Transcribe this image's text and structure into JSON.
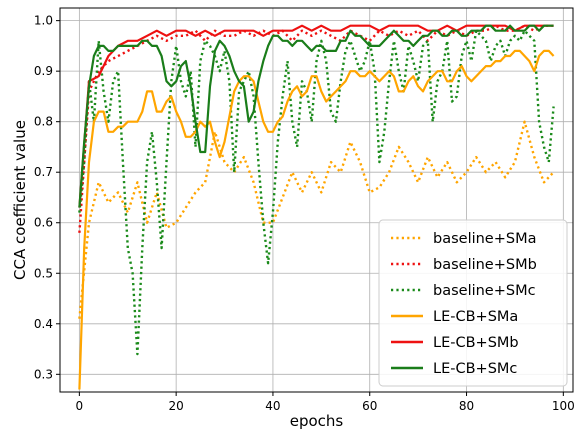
{
  "chart_data": {
    "type": "line",
    "xlabel": "epochs",
    "ylabel": "CCA coefficient value",
    "xlim": [
      -4,
      102
    ],
    "ylim": [
      0.265,
      1.025
    ],
    "xticks": [
      0,
      20,
      40,
      60,
      80,
      100
    ],
    "yticks": [
      0.3,
      0.4,
      0.5,
      0.6,
      0.7,
      0.8,
      0.9,
      1.0
    ],
    "xtick_labels": [
      "0",
      "20",
      "40",
      "60",
      "80",
      "100"
    ],
    "ytick_labels": [
      "0.3",
      "0.4",
      "0.5",
      "0.6",
      "0.7",
      "0.8",
      "0.9",
      "1.0"
    ],
    "grid": true,
    "legend_position": "bottom-right",
    "series": [
      {
        "name": "baseline+SMa",
        "color": "#ffa500",
        "style": "dotted",
        "x": [
          0,
          2,
          4,
          6,
          8,
          10,
          12,
          14,
          16,
          18,
          20,
          22,
          24,
          26,
          28,
          30,
          32,
          34,
          36,
          38,
          40,
          42,
          44,
          46,
          48,
          50,
          52,
          54,
          56,
          58,
          60,
          62,
          64,
          66,
          68,
          70,
          72,
          74,
          76,
          78,
          80,
          82,
          84,
          86,
          88,
          90,
          92,
          94,
          96,
          98
        ],
        "y": [
          0.41,
          0.6,
          0.68,
          0.64,
          0.66,
          0.62,
          0.68,
          0.6,
          0.66,
          0.59,
          0.6,
          0.63,
          0.66,
          0.68,
          0.78,
          0.72,
          0.7,
          0.73,
          0.68,
          0.6,
          0.6,
          0.65,
          0.7,
          0.66,
          0.7,
          0.66,
          0.72,
          0.7,
          0.76,
          0.72,
          0.66,
          0.67,
          0.7,
          0.75,
          0.72,
          0.68,
          0.73,
          0.69,
          0.72,
          0.68,
          0.7,
          0.73,
          0.7,
          0.72,
          0.69,
          0.72,
          0.8,
          0.73,
          0.68,
          0.7
        ]
      },
      {
        "name": "baseline+SMb",
        "color": "#ee1111",
        "style": "dotted",
        "x": [
          0,
          2,
          4,
          6,
          8,
          10,
          12,
          14,
          16,
          18,
          20,
          22,
          24,
          26,
          28,
          30,
          32,
          34,
          36,
          38,
          40,
          42,
          44,
          46,
          48,
          50,
          52,
          54,
          56,
          58,
          60,
          62,
          64,
          66,
          68,
          70,
          72,
          74,
          76,
          78,
          80,
          82,
          84,
          86,
          88,
          90,
          92,
          94,
          96,
          98
        ],
        "y": [
          0.58,
          0.86,
          0.9,
          0.92,
          0.93,
          0.94,
          0.95,
          0.96,
          0.97,
          0.96,
          0.97,
          0.97,
          0.98,
          0.96,
          0.98,
          0.97,
          0.97,
          0.98,
          0.97,
          0.98,
          0.97,
          0.98,
          0.96,
          0.98,
          0.97,
          0.98,
          0.97,
          0.96,
          0.98,
          0.97,
          0.96,
          0.98,
          0.97,
          0.98,
          0.97,
          0.98,
          0.96,
          0.98,
          0.97,
          0.98,
          0.97,
          0.98,
          0.98,
          0.99,
          0.98,
          0.98,
          0.99,
          0.98,
          0.99,
          0.99
        ]
      },
      {
        "name": "baseline+SMc",
        "color": "#1a8a1a",
        "style": "dotted",
        "x": [
          0,
          1,
          2,
          3,
          4,
          5,
          6,
          7,
          8,
          9,
          10,
          11,
          12,
          13,
          14,
          15,
          16,
          17,
          18,
          19,
          20,
          21,
          22,
          23,
          24,
          25,
          26,
          27,
          28,
          29,
          30,
          31,
          32,
          33,
          34,
          35,
          36,
          37,
          38,
          39,
          40,
          41,
          42,
          43,
          44,
          45,
          46,
          47,
          48,
          49,
          50,
          51,
          52,
          53,
          54,
          55,
          56,
          57,
          58,
          59,
          60,
          61,
          62,
          63,
          64,
          65,
          66,
          67,
          68,
          69,
          70,
          71,
          72,
          73,
          74,
          75,
          76,
          77,
          78,
          79,
          80,
          81,
          82,
          83,
          84,
          85,
          86,
          87,
          88,
          89,
          90,
          91,
          92,
          93,
          94,
          95,
          96,
          97,
          98
        ],
        "y": [
          0.62,
          0.72,
          0.88,
          0.8,
          0.96,
          0.86,
          0.8,
          0.88,
          0.9,
          0.72,
          0.55,
          0.5,
          0.34,
          0.55,
          0.72,
          0.78,
          0.68,
          0.55,
          0.72,
          0.88,
          0.95,
          0.88,
          0.85,
          0.9,
          0.75,
          0.92,
          0.96,
          0.95,
          0.93,
          0.9,
          0.94,
          0.88,
          0.7,
          0.86,
          0.88,
          0.9,
          0.85,
          0.72,
          0.6,
          0.52,
          0.62,
          0.76,
          0.85,
          0.92,
          0.8,
          0.75,
          0.88,
          0.86,
          0.8,
          0.92,
          0.96,
          0.92,
          0.82,
          0.8,
          0.88,
          0.94,
          0.96,
          0.93,
          0.9,
          0.92,
          0.96,
          0.9,
          0.72,
          0.78,
          0.88,
          0.96,
          0.9,
          0.86,
          0.95,
          0.92,
          0.88,
          0.95,
          0.96,
          0.8,
          0.88,
          0.9,
          0.96,
          0.84,
          0.85,
          0.93,
          0.96,
          0.92,
          0.98,
          0.97,
          0.96,
          0.92,
          0.95,
          0.96,
          0.93,
          0.96,
          0.97,
          0.96,
          0.98,
          0.97,
          0.96,
          0.8,
          0.75,
          0.72,
          0.83
        ]
      },
      {
        "name": "LE-CB+SMa",
        "color": "#ffa500",
        "style": "solid",
        "x": [
          0,
          1,
          2,
          3,
          4,
          5,
          6,
          7,
          8,
          9,
          10,
          11,
          12,
          13,
          14,
          15,
          16,
          17,
          18,
          19,
          20,
          21,
          22,
          23,
          24,
          25,
          26,
          27,
          28,
          29,
          30,
          31,
          32,
          33,
          34,
          35,
          36,
          37,
          38,
          39,
          40,
          41,
          42,
          43,
          44,
          45,
          46,
          47,
          48,
          49,
          50,
          51,
          52,
          53,
          54,
          55,
          56,
          57,
          58,
          59,
          60,
          61,
          62,
          63,
          64,
          65,
          66,
          67,
          68,
          69,
          70,
          71,
          72,
          73,
          74,
          75,
          76,
          77,
          78,
          79,
          80,
          81,
          82,
          83,
          84,
          85,
          86,
          87,
          88,
          89,
          90,
          91,
          92,
          93,
          94,
          95,
          96,
          97,
          98
        ],
        "y": [
          0.27,
          0.55,
          0.72,
          0.8,
          0.82,
          0.82,
          0.78,
          0.78,
          0.79,
          0.79,
          0.8,
          0.8,
          0.8,
          0.82,
          0.86,
          0.86,
          0.82,
          0.82,
          0.84,
          0.85,
          0.82,
          0.8,
          0.77,
          0.77,
          0.78,
          0.8,
          0.79,
          0.8,
          0.76,
          0.73,
          0.76,
          0.81,
          0.86,
          0.88,
          0.89,
          0.89,
          0.88,
          0.84,
          0.8,
          0.78,
          0.78,
          0.8,
          0.81,
          0.84,
          0.86,
          0.87,
          0.85,
          0.86,
          0.89,
          0.89,
          0.86,
          0.84,
          0.85,
          0.86,
          0.87,
          0.88,
          0.9,
          0.9,
          0.89,
          0.89,
          0.9,
          0.89,
          0.88,
          0.89,
          0.9,
          0.89,
          0.86,
          0.86,
          0.88,
          0.89,
          0.87,
          0.86,
          0.88,
          0.89,
          0.9,
          0.9,
          0.88,
          0.88,
          0.9,
          0.91,
          0.89,
          0.88,
          0.89,
          0.9,
          0.91,
          0.91,
          0.92,
          0.92,
          0.93,
          0.93,
          0.94,
          0.94,
          0.93,
          0.92,
          0.9,
          0.93,
          0.94,
          0.94,
          0.93
        ]
      },
      {
        "name": "LE-CB+SMb",
        "color": "#ee1111",
        "style": "solid",
        "x": [
          0,
          2,
          4,
          6,
          8,
          10,
          12,
          14,
          16,
          18,
          20,
          22,
          24,
          26,
          28,
          30,
          32,
          34,
          36,
          38,
          40,
          42,
          44,
          46,
          48,
          50,
          52,
          54,
          56,
          58,
          60,
          62,
          64,
          66,
          68,
          70,
          72,
          74,
          76,
          78,
          80,
          82,
          84,
          86,
          88,
          90,
          92,
          94,
          96,
          98
        ],
        "y": [
          0.63,
          0.88,
          0.89,
          0.93,
          0.95,
          0.96,
          0.96,
          0.97,
          0.98,
          0.97,
          0.98,
          0.98,
          0.97,
          0.98,
          0.97,
          0.98,
          0.98,
          0.98,
          0.98,
          0.97,
          0.98,
          0.98,
          0.98,
          0.99,
          0.98,
          0.99,
          0.98,
          0.98,
          0.99,
          0.99,
          0.99,
          0.98,
          0.99,
          0.99,
          0.99,
          0.99,
          0.98,
          0.98,
          0.99,
          0.98,
          0.99,
          0.99,
          0.99,
          0.99,
          0.99,
          0.98,
          0.99,
          0.99,
          0.99,
          0.99
        ]
      },
      {
        "name": "LE-CB+SMc",
        "color": "#1a7d1a",
        "style": "solid",
        "x": [
          0,
          1,
          2,
          3,
          4,
          5,
          6,
          7,
          8,
          9,
          10,
          11,
          12,
          13,
          14,
          15,
          16,
          17,
          18,
          19,
          20,
          21,
          22,
          23,
          24,
          25,
          26,
          27,
          28,
          29,
          30,
          31,
          32,
          33,
          34,
          35,
          36,
          37,
          38,
          39,
          40,
          41,
          42,
          43,
          44,
          45,
          46,
          47,
          48,
          49,
          50,
          51,
          52,
          53,
          54,
          55,
          56,
          57,
          58,
          59,
          60,
          61,
          62,
          63,
          64,
          65,
          66,
          67,
          68,
          69,
          70,
          71,
          72,
          73,
          74,
          75,
          76,
          77,
          78,
          79,
          80,
          81,
          82,
          83,
          84,
          85,
          86,
          87,
          88,
          89,
          90,
          91,
          92,
          93,
          94,
          95,
          96,
          97,
          98
        ],
        "y": [
          0.63,
          0.76,
          0.87,
          0.93,
          0.95,
          0.95,
          0.94,
          0.94,
          0.95,
          0.95,
          0.95,
          0.95,
          0.95,
          0.96,
          0.96,
          0.95,
          0.95,
          0.93,
          0.88,
          0.87,
          0.88,
          0.91,
          0.92,
          0.87,
          0.8,
          0.74,
          0.74,
          0.87,
          0.94,
          0.96,
          0.95,
          0.93,
          0.9,
          0.88,
          0.87,
          0.8,
          0.82,
          0.88,
          0.92,
          0.95,
          0.97,
          0.97,
          0.96,
          0.96,
          0.95,
          0.96,
          0.96,
          0.95,
          0.94,
          0.95,
          0.95,
          0.94,
          0.94,
          0.94,
          0.96,
          0.96,
          0.98,
          0.97,
          0.97,
          0.96,
          0.95,
          0.95,
          0.95,
          0.96,
          0.97,
          0.98,
          0.97,
          0.96,
          0.96,
          0.95,
          0.96,
          0.97,
          0.97,
          0.98,
          0.98,
          0.97,
          0.97,
          0.98,
          0.98,
          0.97,
          0.97,
          0.98,
          0.98,
          0.98,
          0.99,
          0.99,
          0.98,
          0.98,
          0.98,
          0.99,
          0.98,
          0.98,
          0.98,
          0.99,
          0.99,
          0.98,
          0.99,
          0.99,
          0.99
        ]
      }
    ]
  }
}
